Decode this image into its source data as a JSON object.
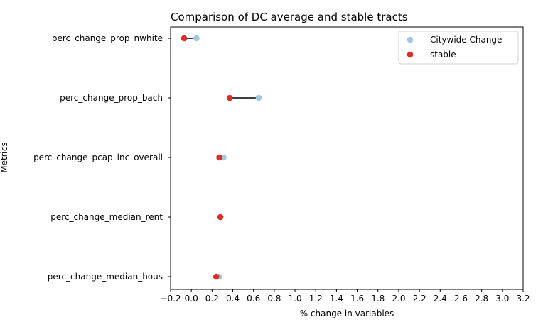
{
  "chart_data": {
    "type": "scatter",
    "title": "Comparison of DC average and stable tracts",
    "xlabel": "% change in variables",
    "ylabel": "Metrics",
    "xlim": [
      -0.2,
      3.2
    ],
    "xticks": [
      "−0.2",
      "0.0",
      "0.2",
      "0.4",
      "0.6",
      "0.8",
      "1.0",
      "1.2",
      "1.4",
      "1.6",
      "1.8",
      "2.0",
      "2.2",
      "2.4",
      "2.6",
      "2.8",
      "3.0",
      "3.2"
    ],
    "xtick_values": [
      -0.2,
      0.0,
      0.2,
      0.4,
      0.6,
      0.8,
      1.0,
      1.2,
      1.4,
      1.6,
      1.8,
      2.0,
      2.2,
      2.4,
      2.6,
      2.8,
      3.0,
      3.2
    ],
    "categories": [
      "perc_change_prop_nwhite",
      "perc_change_prop_bach",
      "perc_change_pcap_inc_overall",
      "perc_change_median_rent",
      "perc_change_median_hous"
    ],
    "series": [
      {
        "name": "Citywide Change",
        "color": "#9ecae1",
        "values": [
          0.05,
          0.65,
          0.31,
          0.28,
          0.27
        ]
      },
      {
        "name": "stable",
        "color": "#de2d26",
        "values": [
          -0.07,
          0.37,
          0.27,
          0.28,
          0.24
        ]
      }
    ],
    "connector_color": "#000000",
    "grid": false,
    "legend_position": "upper right"
  }
}
